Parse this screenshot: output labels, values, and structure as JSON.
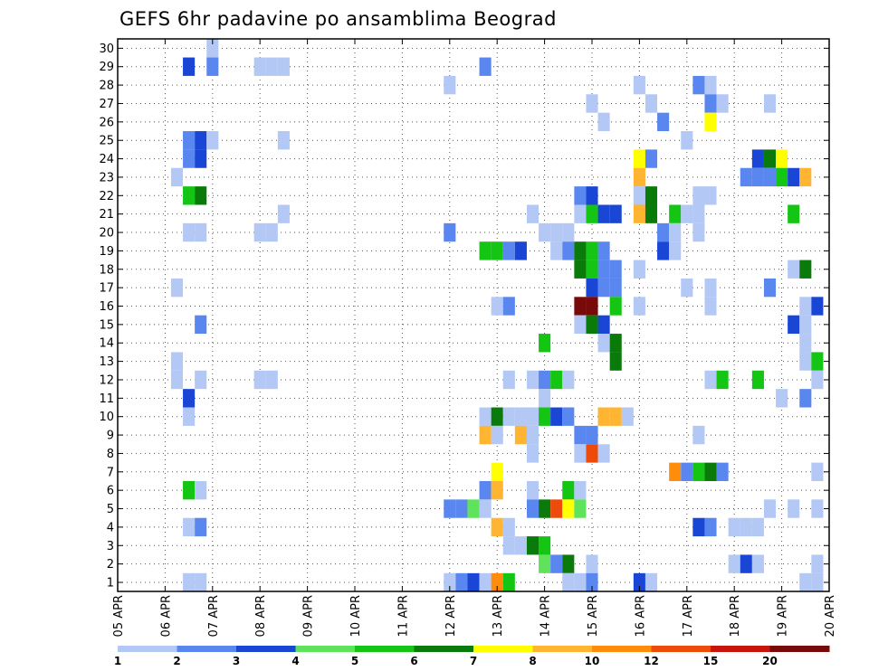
{
  "chart_data": {
    "type": "heatmap",
    "title": "GEFS 6hr padavine po ansamblima Beograd",
    "x_tick_labels": [
      "05 APR",
      "06 APR",
      "07 APR",
      "08 APR",
      "09 APR",
      "10 APR",
      "11 APR",
      "12 APR",
      "13 APR",
      "14 APR",
      "15 APR",
      "16 APR",
      "17 APR",
      "18 APR",
      "19 APR",
      "20 APR"
    ],
    "y_tick_labels": [
      "1",
      "2",
      "3",
      "4",
      "5",
      "6",
      "7",
      "8",
      "9",
      "10",
      "11",
      "12",
      "13",
      "14",
      "15",
      "16",
      "17",
      "18",
      "19",
      "20",
      "21",
      "22",
      "23",
      "24",
      "25",
      "26",
      "27",
      "28",
      "29",
      "30"
    ],
    "grid": "dotted",
    "colorbar": {
      "labels": [
        "1",
        "2",
        "3",
        "4",
        "5",
        "6",
        "7",
        "8",
        "10",
        "12",
        "15",
        "20"
      ],
      "colors": [
        "#b4c8f5",
        "#5a87ef",
        "#1a46d6",
        "#5fe35a",
        "#14c514",
        "#0a7a0a",
        "#ffff00",
        "#ffb432",
        "#ff8c0a",
        "#ee4a0a",
        "#c8140a",
        "#780a0a"
      ]
    },
    "cells": [
      [
        30,
        7.0,
        1
      ],
      [
        29,
        6.5,
        3
      ],
      [
        29,
        7.0,
        2
      ],
      [
        29,
        8.0,
        1
      ],
      [
        29,
        8.25,
        1
      ],
      [
        29,
        8.5,
        1
      ],
      [
        29,
        12.75,
        2
      ],
      [
        28,
        12.0,
        1
      ],
      [
        28,
        16.0,
        1
      ],
      [
        28,
        17.25,
        2
      ],
      [
        28,
        17.5,
        1
      ],
      [
        27,
        15.0,
        1
      ],
      [
        27,
        16.25,
        1
      ],
      [
        27,
        17.5,
        2
      ],
      [
        27,
        17.75,
        1
      ],
      [
        27,
        18.75,
        1
      ],
      [
        26,
        15.25,
        1
      ],
      [
        26,
        16.5,
        2
      ],
      [
        26,
        17.5,
        7
      ],
      [
        25,
        6.5,
        2
      ],
      [
        25,
        6.75,
        3
      ],
      [
        25,
        7.0,
        1
      ],
      [
        25,
        8.5,
        1
      ],
      [
        25,
        17.0,
        1
      ],
      [
        24,
        6.5,
        2
      ],
      [
        24,
        6.75,
        3
      ],
      [
        24,
        16.0,
        7
      ],
      [
        24,
        16.25,
        2
      ],
      [
        24,
        18.5,
        3
      ],
      [
        24,
        18.75,
        6
      ],
      [
        24,
        19.0,
        7
      ],
      [
        23,
        6.25,
        1
      ],
      [
        23,
        16.0,
        8
      ],
      [
        23,
        18.25,
        2
      ],
      [
        23,
        18.5,
        2
      ],
      [
        23,
        18.75,
        2
      ],
      [
        23,
        19.0,
        5
      ],
      [
        23,
        19.25,
        3
      ],
      [
        23,
        19.5,
        8
      ],
      [
        22,
        6.5,
        5
      ],
      [
        22,
        6.75,
        6
      ],
      [
        22,
        14.75,
        2
      ],
      [
        22,
        15.0,
        3
      ],
      [
        22,
        16.0,
        1
      ],
      [
        22,
        16.25,
        6
      ],
      [
        22,
        17.25,
        1
      ],
      [
        22,
        17.5,
        1
      ],
      [
        21,
        8.5,
        1
      ],
      [
        21,
        13.75,
        1
      ],
      [
        21,
        14.75,
        1
      ],
      [
        21,
        15.0,
        5
      ],
      [
        21,
        15.25,
        3
      ],
      [
        21,
        15.5,
        3
      ],
      [
        21,
        16.0,
        8
      ],
      [
        21,
        16.25,
        6
      ],
      [
        21,
        16.75,
        5
      ],
      [
        21,
        17.0,
        1
      ],
      [
        21,
        17.25,
        1
      ],
      [
        21,
        19.25,
        5
      ],
      [
        20,
        6.5,
        1
      ],
      [
        20,
        6.75,
        1
      ],
      [
        20,
        8.0,
        1
      ],
      [
        20,
        8.25,
        1
      ],
      [
        20,
        12.0,
        2
      ],
      [
        20,
        14.0,
        1
      ],
      [
        20,
        14.25,
        1
      ],
      [
        20,
        14.5,
        1
      ],
      [
        20,
        16.5,
        2
      ],
      [
        20,
        16.75,
        1
      ],
      [
        20,
        17.25,
        1
      ],
      [
        19,
        12.75,
        5
      ],
      [
        19,
        13.0,
        5
      ],
      [
        19,
        13.25,
        2
      ],
      [
        19,
        13.5,
        3
      ],
      [
        19,
        14.25,
        1
      ],
      [
        19,
        14.5,
        2
      ],
      [
        19,
        14.75,
        6
      ],
      [
        19,
        15.0,
        5
      ],
      [
        19,
        15.25,
        2
      ],
      [
        19,
        16.5,
        3
      ],
      [
        19,
        16.75,
        1
      ],
      [
        18,
        14.75,
        6
      ],
      [
        18,
        15.0,
        5
      ],
      [
        18,
        15.25,
        2
      ],
      [
        18,
        15.5,
        2
      ],
      [
        18,
        16.0,
        1
      ],
      [
        18,
        19.25,
        1
      ],
      [
        18,
        19.5,
        6
      ],
      [
        17,
        6.25,
        1
      ],
      [
        17,
        15.0,
        3
      ],
      [
        17,
        15.25,
        2
      ],
      [
        17,
        15.5,
        2
      ],
      [
        17,
        17.0,
        1
      ],
      [
        17,
        17.5,
        1
      ],
      [
        17,
        18.75,
        2
      ],
      [
        16,
        13.0,
        1
      ],
      [
        16,
        13.25,
        2
      ],
      [
        16,
        14.75,
        12
      ],
      [
        16,
        15.0,
        12
      ],
      [
        16,
        15.5,
        5
      ],
      [
        16,
        16.0,
        1
      ],
      [
        16,
        17.5,
        1
      ],
      [
        16,
        19.5,
        1
      ],
      [
        16,
        19.75,
        3
      ],
      [
        15,
        6.75,
        2
      ],
      [
        15,
        14.75,
        1
      ],
      [
        15,
        15.0,
        6
      ],
      [
        15,
        15.25,
        3
      ],
      [
        15,
        19.25,
        3
      ],
      [
        15,
        19.5,
        1
      ],
      [
        14,
        14.0,
        5
      ],
      [
        14,
        15.25,
        1
      ],
      [
        14,
        15.5,
        6
      ],
      [
        14,
        19.5,
        1
      ],
      [
        13,
        6.25,
        1
      ],
      [
        13,
        15.5,
        6
      ],
      [
        13,
        19.5,
        1
      ],
      [
        13,
        19.75,
        5
      ],
      [
        12,
        6.25,
        1
      ],
      [
        12,
        6.75,
        1
      ],
      [
        12,
        8.0,
        1
      ],
      [
        12,
        8.25,
        1
      ],
      [
        12,
        13.25,
        1
      ],
      [
        12,
        13.75,
        1
      ],
      [
        12,
        14.0,
        2
      ],
      [
        12,
        14.25,
        5
      ],
      [
        12,
        14.5,
        1
      ],
      [
        12,
        17.5,
        1
      ],
      [
        12,
        17.75,
        5
      ],
      [
        12,
        18.5,
        5
      ],
      [
        12,
        19.75,
        1
      ],
      [
        11,
        6.5,
        3
      ],
      [
        11,
        14.0,
        1
      ],
      [
        11,
        19.0,
        1
      ],
      [
        11,
        19.5,
        2
      ],
      [
        10,
        6.5,
        1
      ],
      [
        10,
        12.75,
        1
      ],
      [
        10,
        13.0,
        6
      ],
      [
        10,
        13.25,
        1
      ],
      [
        10,
        13.5,
        1
      ],
      [
        10,
        13.75,
        1
      ],
      [
        10,
        14.0,
        5
      ],
      [
        10,
        14.25,
        3
      ],
      [
        10,
        14.5,
        2
      ],
      [
        10,
        15.25,
        8
      ],
      [
        10,
        15.5,
        8
      ],
      [
        10,
        15.75,
        1
      ],
      [
        9,
        12.75,
        8
      ],
      [
        9,
        13.0,
        1
      ],
      [
        9,
        13.5,
        8
      ],
      [
        9,
        13.75,
        1
      ],
      [
        9,
        14.75,
        2
      ],
      [
        9,
        15.0,
        2
      ],
      [
        9,
        17.25,
        1
      ],
      [
        8,
        13.75,
        1
      ],
      [
        8,
        14.75,
        1
      ],
      [
        8,
        15.0,
        10
      ],
      [
        8,
        15.25,
        1
      ],
      [
        7,
        13.0,
        7
      ],
      [
        7,
        16.75,
        9
      ],
      [
        7,
        17.0,
        2
      ],
      [
        7,
        17.25,
        5
      ],
      [
        7,
        17.5,
        6
      ],
      [
        7,
        17.75,
        2
      ],
      [
        7,
        19.75,
        1
      ],
      [
        6,
        6.5,
        5
      ],
      [
        6,
        6.75,
        1
      ],
      [
        6,
        12.75,
        2
      ],
      [
        6,
        13.0,
        8
      ],
      [
        6,
        13.75,
        1
      ],
      [
        6,
        14.5,
        5
      ],
      [
        6,
        14.75,
        1
      ],
      [
        5,
        12.0,
        2
      ],
      [
        5,
        12.25,
        2
      ],
      [
        5,
        12.5,
        4
      ],
      [
        5,
        12.75,
        1
      ],
      [
        5,
        13.75,
        2
      ],
      [
        5,
        14.0,
        6
      ],
      [
        5,
        14.25,
        10
      ],
      [
        5,
        14.5,
        7
      ],
      [
        5,
        14.75,
        4
      ],
      [
        5,
        18.75,
        1
      ],
      [
        5,
        19.25,
        1
      ],
      [
        5,
        19.75,
        1
      ],
      [
        4,
        6.5,
        1
      ],
      [
        4,
        6.75,
        2
      ],
      [
        4,
        13.0,
        8
      ],
      [
        4,
        13.25,
        1
      ],
      [
        4,
        17.25,
        3
      ],
      [
        4,
        17.5,
        2
      ],
      [
        4,
        18.0,
        1
      ],
      [
        4,
        18.25,
        1
      ],
      [
        4,
        18.5,
        1
      ],
      [
        3,
        13.25,
        1
      ],
      [
        3,
        13.5,
        1
      ],
      [
        3,
        13.75,
        6
      ],
      [
        3,
        14.0,
        5
      ],
      [
        2,
        14.0,
        4
      ],
      [
        2,
        14.25,
        2
      ],
      [
        2,
        14.5,
        6
      ],
      [
        2,
        15.0,
        1
      ],
      [
        2,
        18.0,
        1
      ],
      [
        2,
        18.25,
        3
      ],
      [
        2,
        18.5,
        1
      ],
      [
        2,
        19.75,
        1
      ],
      [
        1,
        6.5,
        1
      ],
      [
        1,
        6.75,
        1
      ],
      [
        1,
        12.0,
        1
      ],
      [
        1,
        12.25,
        2
      ],
      [
        1,
        12.5,
        3
      ],
      [
        1,
        12.75,
        1
      ],
      [
        1,
        13.0,
        9
      ],
      [
        1,
        13.25,
        5
      ],
      [
        1,
        14.5,
        1
      ],
      [
        1,
        14.75,
        1
      ],
      [
        1,
        15.0,
        2
      ],
      [
        1,
        16.0,
        3
      ],
      [
        1,
        16.25,
        1
      ],
      [
        1,
        19.5,
        1
      ],
      [
        1,
        19.75,
        1
      ]
    ]
  }
}
